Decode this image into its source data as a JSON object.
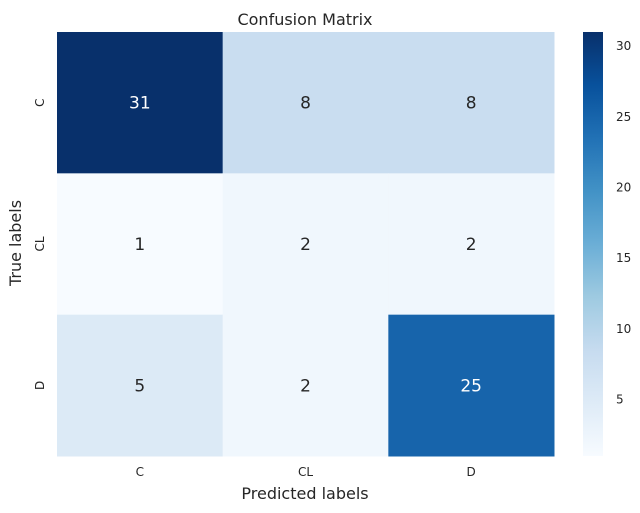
{
  "chart_data": {
    "type": "heatmap",
    "title": "Confusion Matrix",
    "xlabel": "Predicted labels",
    "ylabel": "True labels",
    "x_categories": [
      "C",
      "CL",
      "D"
    ],
    "y_categories": [
      "C",
      "CL",
      "D"
    ],
    "values": [
      [
        31,
        8,
        8
      ],
      [
        1,
        2,
        2
      ],
      [
        5,
        2,
        25
      ]
    ],
    "colormap": "Blues",
    "color_range": [
      1,
      31
    ],
    "colorbar_ticks": [
      5,
      10,
      15,
      20,
      25,
      30
    ],
    "grid": false,
    "annotations": true
  }
}
